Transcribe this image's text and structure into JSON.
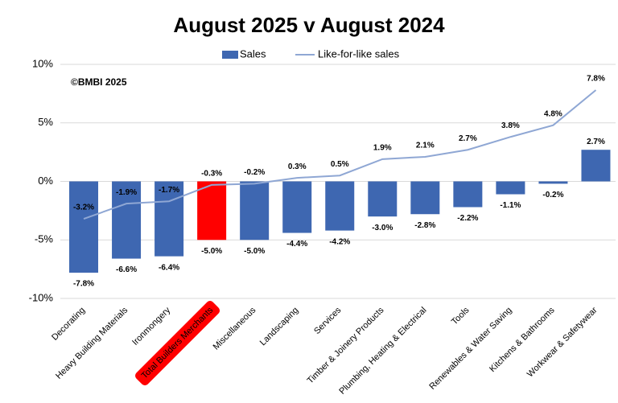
{
  "chart_data": {
    "type": "bar",
    "title": "August 2025 v August 2024",
    "annotation": "©BMBI 2025",
    "categories": [
      "Decorating",
      "Heavy Building Materials",
      "Ironmongery",
      "Total Builders Merchants",
      "Miscellaneous",
      "Landscaping",
      "Services",
      "Timber & Joinery Products",
      "Plumbing, Heating & Electrical",
      "Tools",
      "Renewables & Water Saving",
      "Kitchens & Bathrooms",
      "Workwear & Safetywear"
    ],
    "series": [
      {
        "name": "Sales",
        "type": "bar",
        "color": "#3e67b1",
        "colors": [
          "#3e67b1",
          "#3e67b1",
          "#3e67b1",
          "#ff0000",
          "#3e67b1",
          "#3e67b1",
          "#3e67b1",
          "#3e67b1",
          "#3e67b1",
          "#3e67b1",
          "#3e67b1",
          "#3e67b1",
          "#3e67b1"
        ],
        "values": [
          -7.8,
          -6.6,
          -6.4,
          -5.0,
          -5.0,
          -4.4,
          -4.2,
          -3.0,
          -2.8,
          -2.2,
          -1.1,
          -0.2,
          2.7
        ],
        "value_labels": [
          "-7.8%",
          "-6.6%",
          "-6.4%",
          "-5.0%",
          "-5.0%",
          "-4.4%",
          "-4.2%",
          "-3.0%",
          "-2.8%",
          "-2.2%",
          "-1.1%",
          "-0.2%",
          "2.7%"
        ]
      },
      {
        "name": "Like-for-like sales",
        "type": "line",
        "color": "#8fa7d4",
        "values": [
          -3.2,
          -1.9,
          -1.7,
          -0.3,
          -0.2,
          0.3,
          0.5,
          1.9,
          2.1,
          2.7,
          3.8,
          4.8,
          7.8
        ],
        "value_labels": [
          "-3.2%",
          "-1.9%",
          "-1.7%",
          "-0.3%",
          "-0.2%",
          "0.3%",
          "0.5%",
          "1.9%",
          "2.1%",
          "2.7%",
          "3.8%",
          "4.8%",
          "7.8%"
        ]
      }
    ],
    "ylim": [
      -10,
      10
    ],
    "yticks": [
      {
        "value": -10,
        "label": "-10%"
      },
      {
        "value": -5,
        "label": "-5%"
      },
      {
        "value": 0,
        "label": "0%"
      },
      {
        "value": 5,
        "label": "5%"
      },
      {
        "value": 10,
        "label": "10%"
      }
    ],
    "grid": true,
    "legend": "top"
  }
}
